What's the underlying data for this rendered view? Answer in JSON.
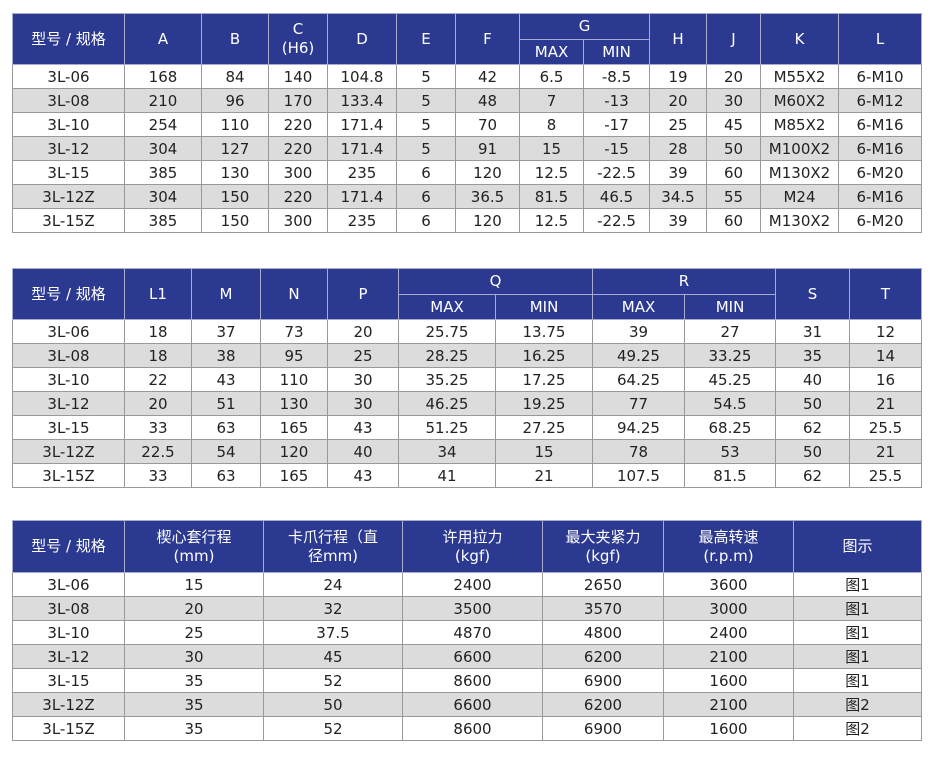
{
  "table1": {
    "header_top": [
      {
        "t": "型号 / 规格",
        "rs": 2
      },
      {
        "t": "A",
        "rs": 2
      },
      {
        "t": "B",
        "rs": 2
      },
      {
        "t": "C\n(H6)",
        "rs": 2
      },
      {
        "t": "D",
        "rs": 2
      },
      {
        "t": "E",
        "rs": 2
      },
      {
        "t": "F",
        "rs": 2
      },
      {
        "t": "G",
        "cs": 2
      },
      {
        "t": "H",
        "rs": 2
      },
      {
        "t": "J",
        "rs": 2
      },
      {
        "t": "K",
        "rs": 2
      },
      {
        "t": "L",
        "rs": 2
      }
    ],
    "header_sub": [
      "MAX",
      "MIN"
    ],
    "rows": [
      [
        "3L-06",
        "168",
        "84",
        "140",
        "104.8",
        "5",
        "42",
        "6.5",
        "-8.5",
        "19",
        "20",
        "M55X2",
        "6-M10"
      ],
      [
        "3L-08",
        "210",
        "96",
        "170",
        "133.4",
        "5",
        "48",
        "7",
        "-13",
        "20",
        "30",
        "M60X2",
        "6-M12"
      ],
      [
        "3L-10",
        "254",
        "110",
        "220",
        "171.4",
        "5",
        "70",
        "8",
        "-17",
        "25",
        "45",
        "M85X2",
        "6-M16"
      ],
      [
        "3L-12",
        "304",
        "127",
        "220",
        "171.4",
        "5",
        "91",
        "15",
        "-15",
        "28",
        "50",
        "M100X2",
        "6-M16"
      ],
      [
        "3L-15",
        "385",
        "130",
        "300",
        "235",
        "6",
        "120",
        "12.5",
        "-22.5",
        "39",
        "60",
        "M130X2",
        "6-M20"
      ],
      [
        "3L-12Z",
        "304",
        "150",
        "220",
        "171.4",
        "6",
        "36.5",
        "81.5",
        "46.5",
        "34.5",
        "55",
        "M24",
        "6-M16"
      ],
      [
        "3L-15Z",
        "385",
        "150",
        "300",
        "235",
        "6",
        "120",
        "12.5",
        "-22.5",
        "39",
        "60",
        "M130X2",
        "6-M20"
      ]
    ]
  },
  "table2": {
    "header_top": [
      {
        "t": "型号 / 规格",
        "rs": 2
      },
      {
        "t": "L1",
        "rs": 2
      },
      {
        "t": "M",
        "rs": 2
      },
      {
        "t": "N",
        "rs": 2
      },
      {
        "t": "P",
        "rs": 2
      },
      {
        "t": "Q",
        "cs": 2
      },
      {
        "t": "R",
        "cs": 2
      },
      {
        "t": "S",
        "rs": 2
      },
      {
        "t": "T",
        "rs": 2
      }
    ],
    "header_sub": [
      "MAX",
      "MIN",
      "MAX",
      "MIN"
    ],
    "rows": [
      [
        "3L-06",
        "18",
        "37",
        "73",
        "20",
        "25.75",
        "13.75",
        "39",
        "27",
        "31",
        "12"
      ],
      [
        "3L-08",
        "18",
        "38",
        "95",
        "25",
        "28.25",
        "16.25",
        "49.25",
        "33.25",
        "35",
        "14"
      ],
      [
        "3L-10",
        "22",
        "43",
        "110",
        "30",
        "35.25",
        "17.25",
        "64.25",
        "45.25",
        "40",
        "16"
      ],
      [
        "3L-12",
        "20",
        "51",
        "130",
        "30",
        "46.25",
        "19.25",
        "77",
        "54.5",
        "50",
        "21"
      ],
      [
        "3L-15",
        "33",
        "63",
        "165",
        "43",
        "51.25",
        "27.25",
        "94.25",
        "68.25",
        "62",
        "25.5"
      ],
      [
        "3L-12Z",
        "22.5",
        "54",
        "120",
        "40",
        "34",
        "15",
        "78",
        "53",
        "50",
        "21"
      ],
      [
        "3L-15Z",
        "33",
        "63",
        "165",
        "43",
        "41",
        "21",
        "107.5",
        "81.5",
        "62",
        "25.5"
      ]
    ]
  },
  "table3": {
    "header_top": [
      {
        "t": "型号 / 规格"
      },
      {
        "t": "楔心套行程\n(mm)"
      },
      {
        "t": "卡爪行程（直\n径mm)"
      },
      {
        "t": "许用拉力\n(kgf)"
      },
      {
        "t": "最大夹紧力\n(kgf)"
      },
      {
        "t": "最高转速\n(r.p.m)"
      },
      {
        "t": "图示"
      }
    ],
    "header_sub": [],
    "rows": [
      [
        "3L-06",
        "15",
        "24",
        "2400",
        "2650",
        "3600",
        "图1"
      ],
      [
        "3L-08",
        "20",
        "32",
        "3500",
        "3570",
        "3000",
        "图1"
      ],
      [
        "3L-10",
        "25",
        "37.5",
        "4870",
        "4800",
        "2400",
        "图1"
      ],
      [
        "3L-12",
        "30",
        "45",
        "6600",
        "6200",
        "2100",
        "图1"
      ],
      [
        "3L-15",
        "35",
        "52",
        "8600",
        "6900",
        "1600",
        "图1"
      ],
      [
        "3L-12Z",
        "35",
        "50",
        "6600",
        "6200",
        "2100",
        "图2"
      ],
      [
        "3L-15Z",
        "35",
        "52",
        "8600",
        "6900",
        "1600",
        "图2"
      ]
    ]
  },
  "colors": {
    "header": "#2b3990",
    "stripe": "#dcdcdc"
  }
}
